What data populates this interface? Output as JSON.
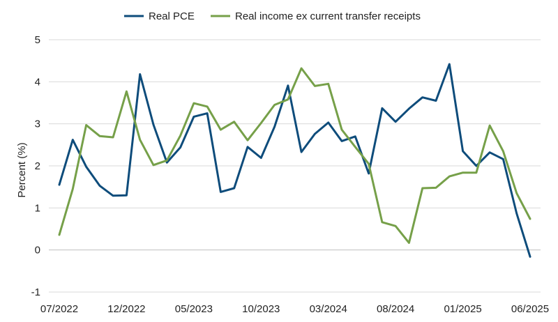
{
  "chart_data": {
    "type": "line",
    "title": "",
    "xlabel": "",
    "ylabel": "Percent (%)",
    "ylim": [
      -1,
      5
    ],
    "yticks": [
      "-1",
      "0",
      "1",
      "2",
      "3",
      "4",
      "5"
    ],
    "grid": "horizontal",
    "legend_position": "top",
    "x": [
      "07/2022",
      "08/2022",
      "09/2022",
      "10/2022",
      "11/2022",
      "12/2022",
      "01/2023",
      "02/2023",
      "03/2023",
      "04/2023",
      "05/2023",
      "06/2023",
      "07/2023",
      "08/2023",
      "09/2023",
      "10/2023",
      "11/2023",
      "12/2023",
      "01/2024",
      "02/2024",
      "03/2024",
      "04/2024",
      "05/2024",
      "06/2024",
      "07/2024",
      "08/2024",
      "09/2024",
      "10/2024",
      "11/2024",
      "12/2024",
      "01/2025",
      "02/2025",
      "03/2025",
      "04/2025",
      "05/2025",
      "06/2025"
    ],
    "xtick_labels": [
      "07/2022",
      "12/2022",
      "05/2023",
      "10/2023",
      "03/2024",
      "08/2024",
      "01/2025",
      "06/2025"
    ],
    "series": [
      {
        "name": "Real PCE",
        "color": "#0e4c7b",
        "values": [
          1.55,
          2.62,
          1.98,
          1.53,
          1.29,
          1.3,
          4.18,
          2.98,
          2.08,
          2.44,
          3.17,
          3.25,
          1.38,
          1.47,
          2.45,
          2.19,
          2.93,
          3.91,
          2.33,
          2.76,
          3.03,
          2.59,
          2.7,
          1.82,
          3.37,
          3.05,
          3.36,
          3.63,
          3.55,
          4.42,
          2.35,
          2.0,
          2.32,
          2.16,
          0.87,
          -0.16
        ]
      },
      {
        "name": "Real income ex current transfer receipts",
        "color": "#76a049",
        "values": [
          0.36,
          1.45,
          2.97,
          2.71,
          2.68,
          3.77,
          2.62,
          2.02,
          2.13,
          2.72,
          3.49,
          3.41,
          2.86,
          3.05,
          2.61,
          3.02,
          3.45,
          3.58,
          4.32,
          3.9,
          3.95,
          2.86,
          2.45,
          2.05,
          0.66,
          0.57,
          0.17,
          1.47,
          1.48,
          1.75,
          1.84,
          1.84,
          2.96,
          2.35,
          1.35,
          0.74
        ]
      }
    ]
  }
}
